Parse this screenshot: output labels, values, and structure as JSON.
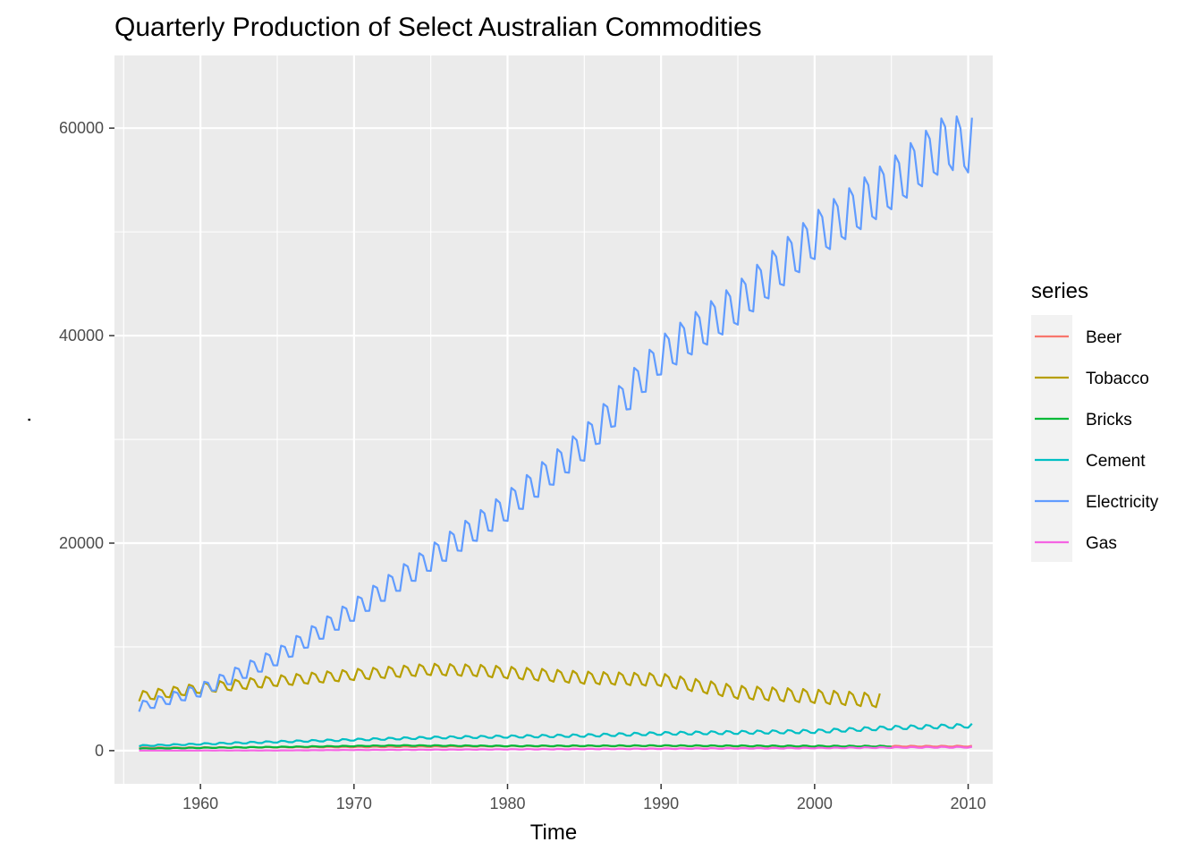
{
  "chart_data": {
    "type": "line",
    "title": "Quarterly Production of Select Australian Commodities",
    "xlabel": "Time",
    "ylabel": ".",
    "xlim": [
      1954.4,
      2011.6
    ],
    "ylim": [
      -3200,
      67000
    ],
    "x_ticks": [
      "1960",
      "1970",
      "1980",
      "1990",
      "2000",
      "2010"
    ],
    "x_tick_values": [
      1960,
      1970,
      1980,
      1990,
      2000,
      2010
    ],
    "y_ticks": [
      "0",
      "20000",
      "40000",
      "60000"
    ],
    "y_tick_values": [
      0,
      20000,
      40000,
      60000
    ],
    "grid": true,
    "legend": {
      "title": "series",
      "position": "right"
    },
    "series": [
      {
        "name": "Beer",
        "color": "#F8766D",
        "start": 1956.0,
        "end": 2010.25,
        "anchors": [
          [
            1956,
            280
          ],
          [
            1970,
            350
          ],
          [
            1980,
            430
          ],
          [
            1990,
            460
          ],
          [
            2000,
            420
          ],
          [
            2010.25,
            420
          ]
        ],
        "seasonal_amp": [
          30,
          50
        ]
      },
      {
        "name": "Tobacco",
        "color": "#B79F00",
        "start": 1956.0,
        "end": 2004.25,
        "anchors": [
          [
            1956,
            5200
          ],
          [
            1960,
            6000
          ],
          [
            1965,
            6700
          ],
          [
            1970,
            7300
          ],
          [
            1975,
            7800
          ],
          [
            1978,
            7700
          ],
          [
            1985,
            7000
          ],
          [
            1990,
            6800
          ],
          [
            1995,
            5600
          ],
          [
            2000,
            5200
          ],
          [
            2004.25,
            4800
          ]
        ],
        "seasonal_amp": [
          500,
          700
        ]
      },
      {
        "name": "Bricks",
        "color": "#00BA38",
        "start": 1956.0,
        "end": 2005.0,
        "anchors": [
          [
            1956,
            200
          ],
          [
            1965,
            350
          ],
          [
            1973,
            500
          ],
          [
            1980,
            450
          ],
          [
            1990,
            480
          ],
          [
            2005,
            420
          ]
        ],
        "seasonal_amp": [
          30,
          50
        ]
      },
      {
        "name": "Cement",
        "color": "#00BFC4",
        "start": 1956.0,
        "end": 2010.25,
        "anchors": [
          [
            1956,
            470
          ],
          [
            1965,
            850
          ],
          [
            1975,
            1250
          ],
          [
            1985,
            1450
          ],
          [
            1990,
            1650
          ],
          [
            1995,
            1750
          ],
          [
            2000,
            1850
          ],
          [
            2005,
            2200
          ],
          [
            2010.25,
            2400
          ]
        ],
        "seasonal_amp": [
          60,
          200
        ]
      },
      {
        "name": "Electricity",
        "color": "#619CFF",
        "start": 1956.0,
        "end": 2010.25,
        "anchors": [
          [
            1956,
            4200
          ],
          [
            1960,
            5800
          ],
          [
            1965,
            9000
          ],
          [
            1970,
            13500
          ],
          [
            1975,
            18500
          ],
          [
            1980,
            23500
          ],
          [
            1985,
            29500
          ],
          [
            1990,
            38000
          ],
          [
            1995,
            43000
          ],
          [
            2000,
            49500
          ],
          [
            2005,
            54500
          ],
          [
            2008.5,
            58500
          ],
          [
            2010.25,
            58200
          ]
        ],
        "seasonal_amp": [
          500,
          2800
        ]
      },
      {
        "name": "Gas",
        "color": "#F564E3",
        "start": 1956.0,
        "end": 2010.25,
        "anchors": [
          [
            1956,
            5
          ],
          [
            1965,
            15
          ],
          [
            1970,
            60
          ],
          [
            1980,
            120
          ],
          [
            1990,
            180
          ],
          [
            2000,
            250
          ],
          [
            2005,
            300
          ],
          [
            2010.25,
            330
          ]
        ],
        "seasonal_amp": [
          1,
          50
        ]
      }
    ]
  }
}
